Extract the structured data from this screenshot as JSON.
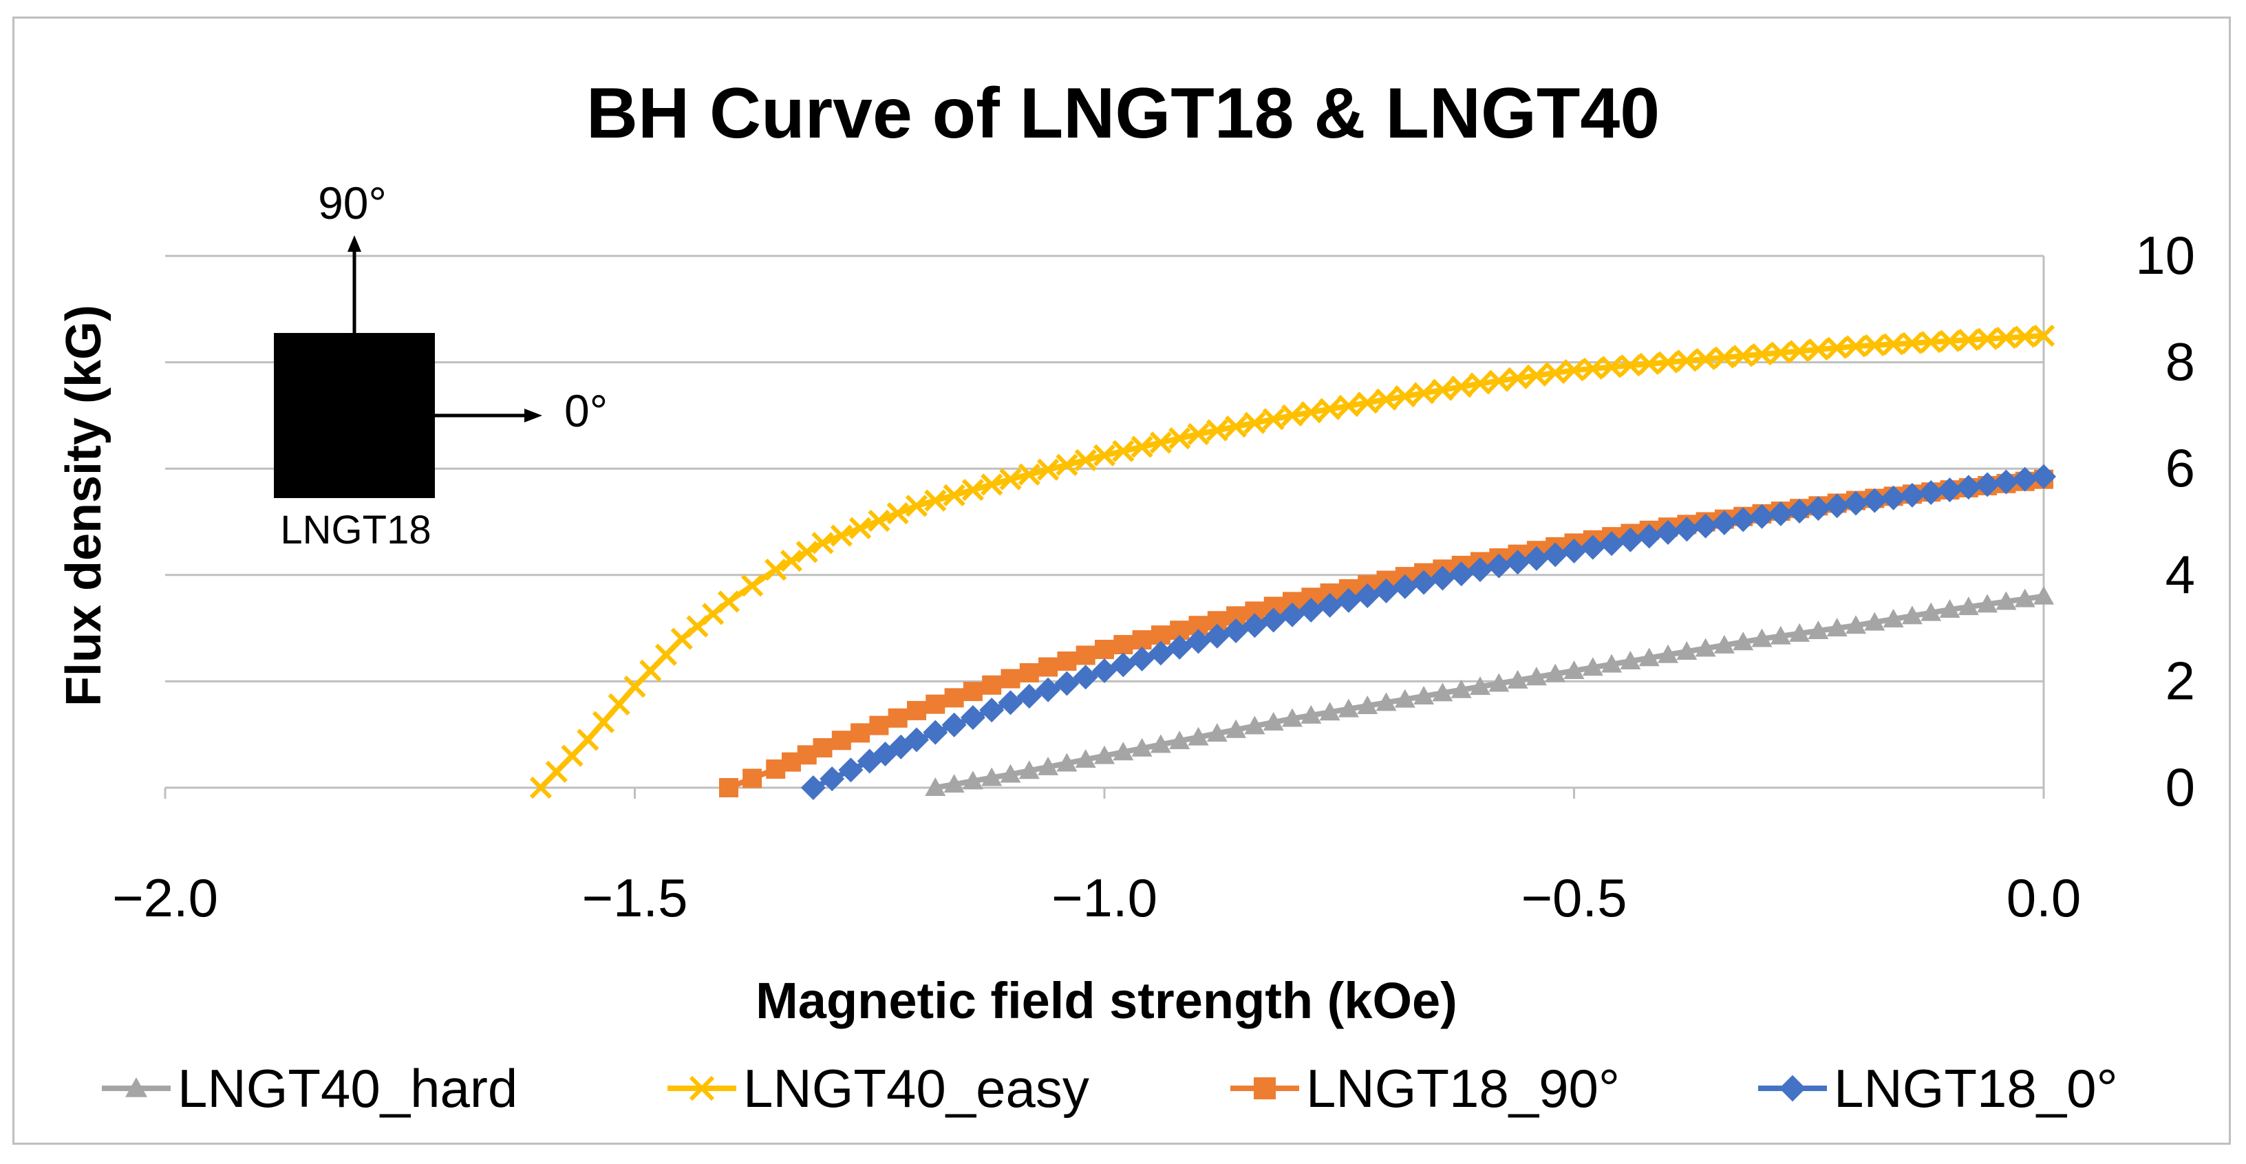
{
  "chart_data": {
    "type": "line",
    "title": "BH Curve of LNGT18 & LNGT40",
    "xlabel": "Magnetic field strength (kOe)",
    "ylabel": "Flux density (kG)",
    "xlim": [
      -2.0,
      0.0
    ],
    "ylim": [
      0,
      10
    ],
    "x_ticks": [
      "−2.0",
      "−1.5",
      "−1.0",
      "−0.5",
      "0.0"
    ],
    "x_tick_values": [
      -2.0,
      -1.5,
      -1.0,
      -0.5,
      0.0
    ],
    "y_ticks": [
      "0",
      "2",
      "4",
      "6",
      "8",
      "10"
    ],
    "y_tick_values": [
      0,
      2,
      4,
      6,
      8,
      10
    ],
    "y_axis_side": "right",
    "grid": "horizontal",
    "legend_position": "bottom",
    "series": [
      {
        "name": "LNGT40_hard",
        "color": "#a5a5a5",
        "marker": "triangle",
        "x": [
          -1.18,
          -1.1,
          -1.0,
          -0.9,
          -0.8,
          -0.7,
          -0.6,
          -0.5,
          -0.4,
          -0.3,
          -0.2,
          -0.1,
          0.0
        ],
        "y": [
          0.0,
          0.25,
          0.6,
          0.95,
          1.3,
          1.6,
          1.9,
          2.2,
          2.5,
          2.8,
          3.05,
          3.35,
          3.6
        ]
      },
      {
        "name": "LNGT40_easy",
        "color": "#ffc000",
        "marker": "x",
        "x": [
          -1.6,
          -1.55,
          -1.5,
          -1.45,
          -1.4,
          -1.35,
          -1.3,
          -1.2,
          -1.1,
          -1.0,
          -0.9,
          -0.8,
          -0.7,
          -0.6,
          -0.5,
          -0.4,
          -0.3,
          -0.2,
          -0.1,
          0.0
        ],
        "y": [
          0.0,
          0.9,
          1.9,
          2.8,
          3.5,
          4.1,
          4.6,
          5.3,
          5.8,
          6.25,
          6.65,
          7.0,
          7.3,
          7.6,
          7.85,
          8.0,
          8.15,
          8.3,
          8.4,
          8.5
        ]
      },
      {
        "name": "LNGT18_90°",
        "color": "#ed7d31",
        "marker": "square",
        "x": [
          -1.4,
          -1.35,
          -1.3,
          -1.2,
          -1.1,
          -1.0,
          -0.9,
          -0.8,
          -0.7,
          -0.6,
          -0.5,
          -0.4,
          -0.3,
          -0.2,
          -0.1,
          0.0
        ],
        "y": [
          0.0,
          0.35,
          0.75,
          1.45,
          2.05,
          2.6,
          3.05,
          3.5,
          3.9,
          4.25,
          4.6,
          4.9,
          5.15,
          5.4,
          5.6,
          5.8
        ]
      },
      {
        "name": "LNGT18_0°",
        "color": "#4472c4",
        "marker": "diamond",
        "x": [
          -1.31,
          -1.25,
          -1.2,
          -1.1,
          -1.0,
          -0.9,
          -0.8,
          -0.7,
          -0.6,
          -0.5,
          -0.4,
          -0.3,
          -0.2,
          -0.1,
          0.0
        ],
        "y": [
          0.0,
          0.5,
          0.9,
          1.6,
          2.2,
          2.75,
          3.25,
          3.7,
          4.1,
          4.45,
          4.8,
          5.1,
          5.35,
          5.6,
          5.85
        ]
      }
    ]
  },
  "inset": {
    "label": "LNGT18",
    "arrow_up_label": "90°",
    "arrow_right_label": "0°"
  }
}
